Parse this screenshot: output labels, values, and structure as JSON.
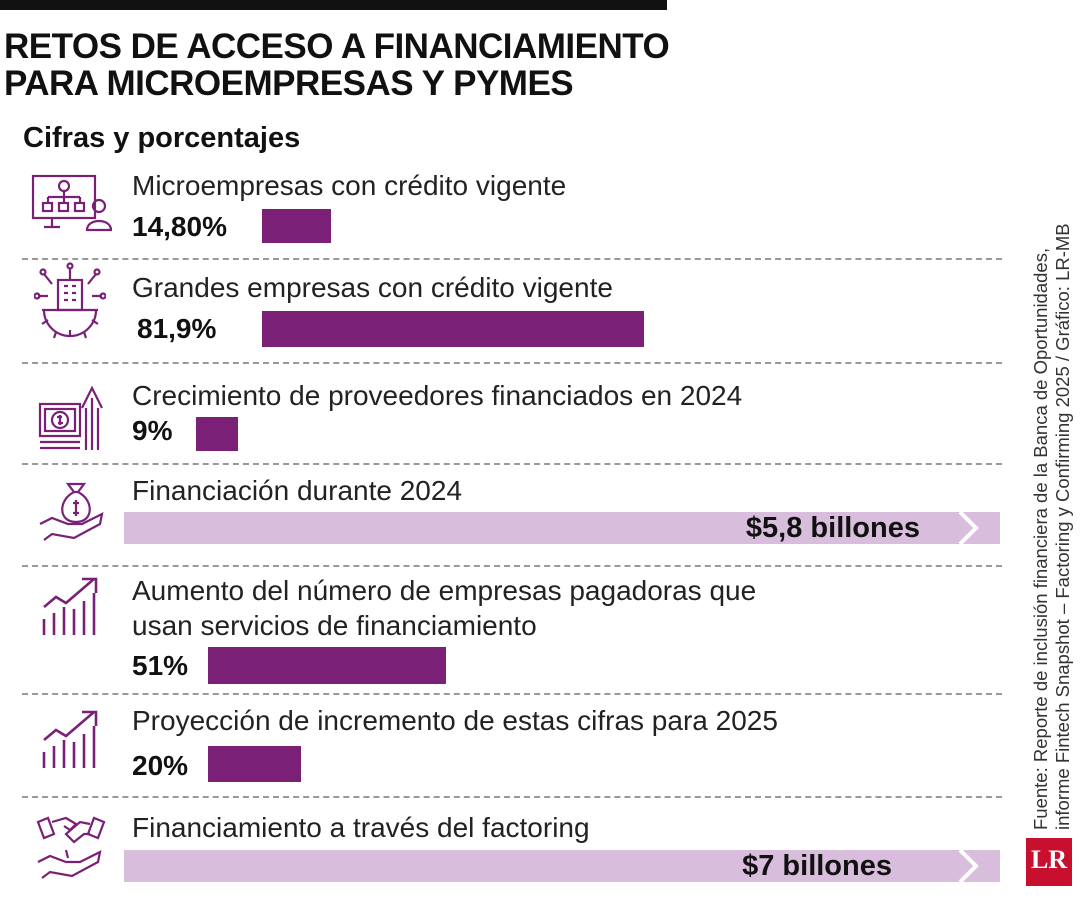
{
  "header": {
    "title_line1": "RETOS DE ACCESO A FINANCIAMIENTO",
    "title_line2": "PARA MICROEMPRESAS Y PYMES",
    "subtitle": "Cifras y porcentajes"
  },
  "source": {
    "line1": "Fuente: Reporte de inclusión financiera de la Banca de Oportunidades,",
    "line2": "informe Fintech Snapshot – Factoring y Confirming 2025 / Gráfico: LR-MB",
    "logo_text": "LR"
  },
  "colors": {
    "bar": "#7a2177",
    "band": "#d9bddc",
    "icon": "#7a2177"
  },
  "chart_data": {
    "type": "bar",
    "title": "Retos de acceso a financiamiento para microempresas y pymes",
    "subtitle": "Cifras y porcentajes",
    "items": [
      {
        "icon": "org-chart-user-icon",
        "label": "Microempresas con crédito vigente",
        "label2": "",
        "value": 14.8,
        "unit": "%",
        "display": "14,80%"
      },
      {
        "icon": "building-gear-icon",
        "label": "Grandes empresas con crédito vigente",
        "label2": "",
        "value": 81.9,
        "unit": "%",
        "display": "81,9%"
      },
      {
        "icon": "money-arrow-up-icon",
        "label": "Crecimiento de proveedores financiados en 2024",
        "label2": "",
        "value": 9,
        "unit": "%",
        "display": "9%"
      },
      {
        "icon": "money-bag-hand-icon",
        "label": "Financiación durante 2024",
        "label2": "",
        "value": 5.8,
        "unit": "billones",
        "display": "$5,8 billones"
      },
      {
        "icon": "growth-chart-icon",
        "label": "Aumento del número de empresas pagadoras que",
        "label2": "usan servicios de financiamiento",
        "value": 51,
        "unit": "%",
        "display": "51%"
      },
      {
        "icon": "growth-chart-icon",
        "label": "Proyección de incremento de estas cifras para 2025",
        "label2": "",
        "value": 20,
        "unit": "%",
        "display": "20%"
      },
      {
        "icon": "handshake-icon",
        "label": "Financiamiento a través del factoring",
        "label2": "",
        "value": 7,
        "unit": "billones",
        "display": "$7 billones"
      }
    ]
  }
}
